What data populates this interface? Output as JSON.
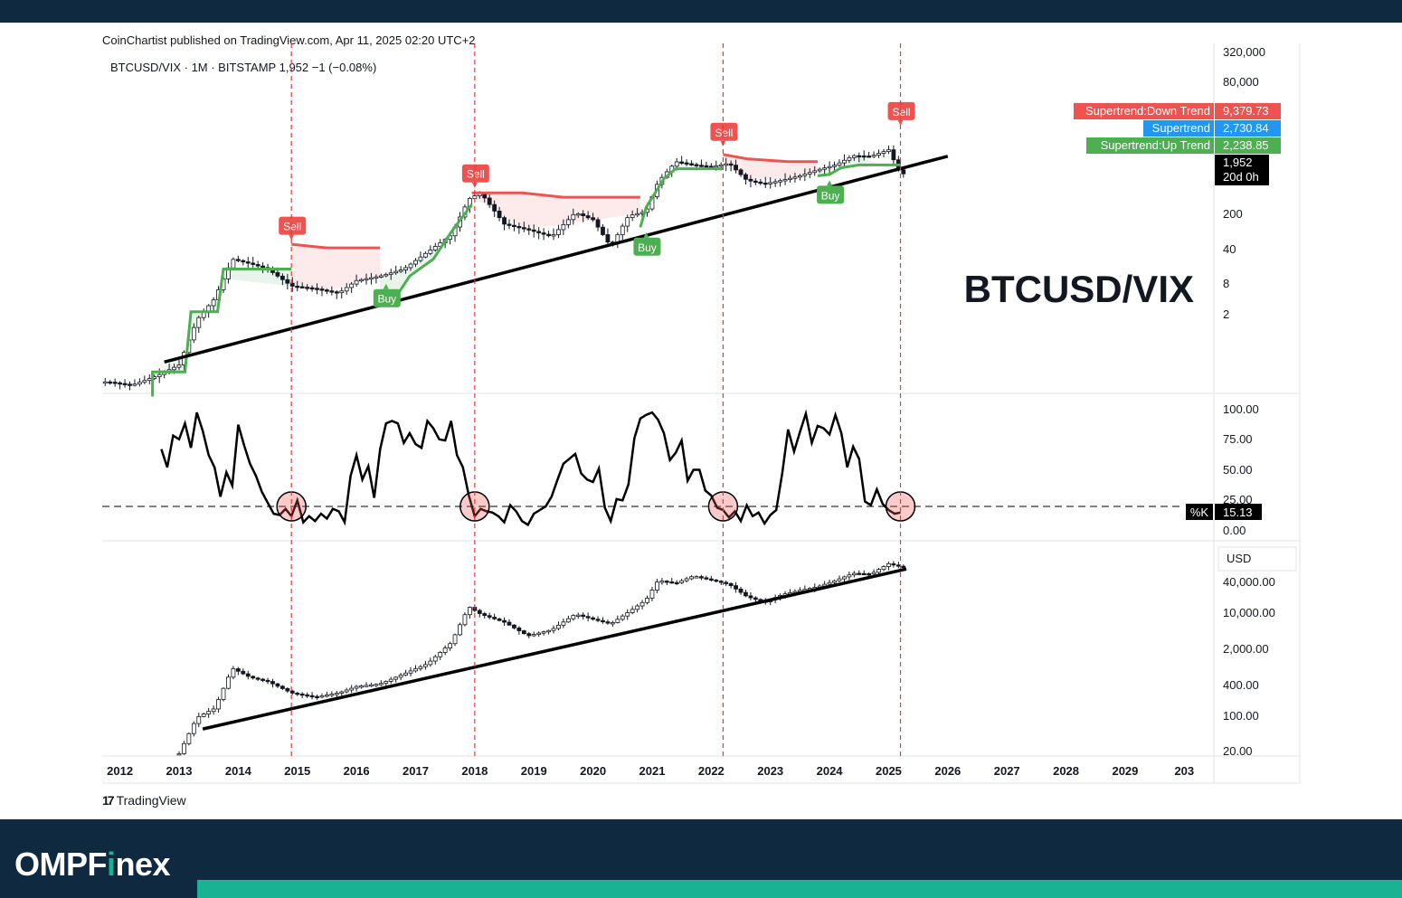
{
  "header": {
    "published": "CoinChartist published on TradingView.com, Apr 11, 2025 02:20 UTC+2",
    "symbol_line": "BTCUSD/VIX · 1M · BITSTAMP  1,952  −1 (−0.08%)"
  },
  "footer": {
    "tradingview_mark": "17",
    "tradingview_label": "TradingView",
    "brand_part1": "OMPF",
    "brand_i": "i",
    "brand_part2": "nex"
  },
  "colors": {
    "sell": "#ef5350",
    "buy": "#4caf50",
    "supertrend": "#2196f3",
    "trendline": "#000000",
    "vline": "#e53935",
    "dark": "#0f2940",
    "teal": "#19b394"
  },
  "chart_data": [
    {
      "type": "line",
      "title": "BTCUSD/VIX",
      "scale": "log",
      "x_ticks": [
        "2012",
        "2013",
        "2014",
        "2015",
        "2016",
        "2017",
        "2018",
        "2019",
        "2020",
        "2021",
        "2022",
        "2023",
        "2024",
        "2025",
        "2026",
        "2027",
        "2028",
        "2029",
        "203"
      ],
      "y_ticks": [
        "320,000",
        "80,000",
        "200",
        "40",
        "8",
        "2"
      ],
      "current_value": "1,952",
      "countdown": "20d 0h",
      "legend": [
        {
          "label": "Supertrend:Down Trend",
          "value": "9,379.73",
          "color": "#ef5350"
        },
        {
          "label": "Supertrend",
          "value": "2,730.84",
          "color": "#2196f3"
        },
        {
          "label": "Supertrend:Up Trend",
          "value": "2,238.85",
          "color": "#4caf50"
        }
      ],
      "signals": [
        {
          "type": "Sell",
          "date": "2014.9"
        },
        {
          "type": "Buy",
          "date": "2016.5"
        },
        {
          "type": "Sell",
          "date": "2018.0"
        },
        {
          "type": "Buy",
          "date": "2020.9"
        },
        {
          "type": "Sell",
          "date": "2022.2"
        },
        {
          "type": "Buy",
          "date": "2024.0"
        },
        {
          "type": "Sell",
          "date": "2025.2"
        }
      ],
      "series": [
        {
          "name": "BTCUSD/VIX",
          "x": [
            2011.8,
            2012.2,
            2012.6,
            2013.0,
            2013.3,
            2013.6,
            2013.9,
            2014.2,
            2014.5,
            2014.9,
            2015.3,
            2015.7,
            2016.0,
            2016.4,
            2016.8,
            2017.2,
            2017.6,
            2017.9,
            2018.1,
            2018.5,
            2018.9,
            2019.3,
            2019.7,
            2020.0,
            2020.3,
            2020.6,
            2020.9,
            2021.1,
            2021.4,
            2021.7,
            2022.0,
            2022.3,
            2022.6,
            2022.9,
            2023.2,
            2023.5,
            2023.8,
            2024.1,
            2024.4,
            2024.7,
            2025.0,
            2025.2
          ],
          "values": [
            0.4,
            0.35,
            0.5,
            0.8,
            5,
            12,
            60,
            50,
            40,
            20,
            18,
            15,
            25,
            30,
            40,
            80,
            160,
            700,
            900,
            250,
            200,
            150,
            400,
            300,
            100,
            350,
            420,
            1400,
            3200,
            2800,
            2600,
            3000,
            1500,
            1300,
            1500,
            1800,
            2300,
            2800,
            4100,
            4000,
            5200,
            1952
          ]
        }
      ]
    },
    {
      "type": "line",
      "title": "",
      "y_ticks": [
        "100.00",
        "75.00",
        "50.00",
        "25.00",
        "0.00"
      ],
      "ylim": [
        0,
        100
      ],
      "reference_line": 20,
      "current_label": "%K",
      "current_value": "15.13",
      "highlight_dates": [
        2014.9,
        2018.0,
        2022.2,
        2025.2
      ],
      "series": [
        {
          "name": "%K",
          "x": [
            2012.7,
            2012.8,
            2012.9,
            2013.0,
            2013.1,
            2013.2,
            2013.3,
            2013.4,
            2013.5,
            2013.6,
            2013.7,
            2013.8,
            2013.9,
            2014.0,
            2014.1,
            2014.2,
            2014.3,
            2014.4,
            2014.5,
            2014.6,
            2014.7,
            2014.8,
            2014.9,
            2015.0,
            2015.1,
            2015.2,
            2015.3,
            2015.4,
            2015.5,
            2015.6,
            2015.7,
            2015.8,
            2015.9,
            2016.0,
            2016.1,
            2016.2,
            2016.3,
            2016.4,
            2016.5,
            2016.6,
            2016.7,
            2016.8,
            2016.9,
            2017.0,
            2017.1,
            2017.2,
            2017.3,
            2017.4,
            2017.5,
            2017.6,
            2017.7,
            2017.8,
            2017.9,
            2018.0,
            2018.1,
            2018.2,
            2018.3,
            2018.4,
            2018.5,
            2018.6,
            2018.7,
            2018.8,
            2018.9,
            2019.0,
            2019.1,
            2019.2,
            2019.3,
            2019.4,
            2019.5,
            2019.6,
            2019.7,
            2019.8,
            2019.9,
            2020.0,
            2020.1,
            2020.2,
            2020.3,
            2020.4,
            2020.5,
            2020.6,
            2020.7,
            2020.8,
            2020.9,
            2021.0,
            2021.1,
            2021.2,
            2021.3,
            2021.4,
            2021.5,
            2021.6,
            2021.7,
            2021.8,
            2021.9,
            2022.0,
            2022.1,
            2022.2,
            2022.3,
            2022.4,
            2022.5,
            2022.6,
            2022.7,
            2022.8,
            2022.9,
            2023.0,
            2023.1,
            2023.2,
            2023.3,
            2023.4,
            2023.5,
            2023.6,
            2023.7,
            2023.8,
            2023.9,
            2024.0,
            2024.1,
            2024.2,
            2024.3,
            2024.4,
            2024.5,
            2024.6,
            2024.7,
            2024.8,
            2024.9,
            2025.0,
            2025.1,
            2025.2
          ],
          "values": [
            67,
            52,
            78,
            75,
            88,
            68,
            97,
            82,
            62,
            52,
            28,
            48,
            37,
            87,
            70,
            55,
            45,
            32,
            23,
            14,
            13,
            18,
            12,
            25,
            7,
            12,
            8,
            14,
            10,
            18,
            16,
            7,
            45,
            62,
            42,
            53,
            27,
            67,
            88,
            90,
            88,
            72,
            80,
            71,
            68,
            90,
            84,
            75,
            74,
            90,
            62,
            52,
            29,
            12,
            18,
            16,
            15,
            12,
            7,
            21,
            16,
            8,
            5,
            14,
            17,
            20,
            28,
            42,
            55,
            59,
            63,
            47,
            42,
            40,
            51,
            19,
            8,
            26,
            25,
            38,
            76,
            92,
            95,
            97,
            91,
            80,
            58,
            64,
            74,
            41,
            50,
            50,
            33,
            29,
            19,
            17,
            11,
            16,
            8,
            21,
            12,
            15,
            6,
            13,
            17,
            47,
            83,
            65,
            81,
            96,
            72,
            86,
            84,
            79,
            95,
            80,
            52,
            69,
            59,
            24,
            21,
            34,
            22,
            17,
            14,
            15
          ]
        }
      ]
    },
    {
      "type": "line",
      "title": "",
      "scale": "log",
      "currency": "USD",
      "y_ticks": [
        "40,000.00",
        "10,000.00",
        "2,000.00",
        "400.00",
        "100.00",
        "20.00"
      ],
      "series": [
        {
          "name": "BTCUSD",
          "x": [
            2013.0,
            2013.3,
            2013.6,
            2013.9,
            2014.2,
            2014.5,
            2014.9,
            2015.3,
            2015.7,
            2016.0,
            2016.4,
            2016.8,
            2017.2,
            2017.6,
            2017.9,
            2018.1,
            2018.5,
            2018.9,
            2019.3,
            2019.7,
            2020.0,
            2020.3,
            2020.6,
            2020.9,
            2021.1,
            2021.4,
            2021.7,
            2022.0,
            2022.3,
            2022.6,
            2022.9,
            2023.2,
            2023.5,
            2023.8,
            2024.1,
            2024.4,
            2024.7,
            2025.0,
            2025.2
          ],
          "values": [
            20,
            100,
            150,
            900,
            600,
            500,
            300,
            250,
            300,
            400,
            450,
            700,
            1100,
            2800,
            14000,
            10000,
            7000,
            3800,
            5000,
            10000,
            8000,
            6500,
            11000,
            19000,
            45000,
            40000,
            55000,
            46000,
            38000,
            22000,
            17000,
            24000,
            29000,
            34000,
            45000,
            62000,
            60000,
            95000,
            83000
          ]
        }
      ]
    }
  ]
}
